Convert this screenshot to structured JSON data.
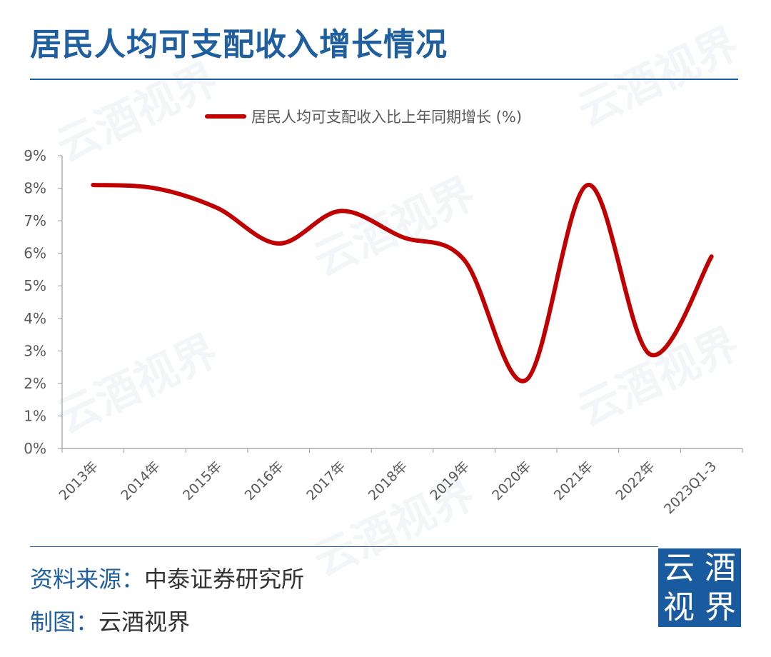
{
  "title": "居民人均可支配收入增长情况",
  "footer": {
    "source_label": "资料来源：",
    "source_value": "中泰证券研究所",
    "credit_label": "制图：",
    "credit_value": "云酒视界"
  },
  "logo": {
    "chars": [
      "云",
      "酒",
      "视",
      "界"
    ]
  },
  "watermark_text": "云酒视界",
  "colors": {
    "accent": "#1f5f9f",
    "line": "#c00000",
    "axis": "#999999",
    "text": "#595959"
  },
  "chart_data": {
    "type": "line",
    "legend": {
      "label": "居民人均可支配收入比上年同期增长 (%)",
      "position": "top"
    },
    "categories": [
      "2013年",
      "2014年",
      "2015年",
      "2016年",
      "2017年",
      "2018年",
      "2019年",
      "2020年",
      "2021年",
      "2022年",
      "2023Q1-3"
    ],
    "series": [
      {
        "name": "居民人均可支配收入比上年同期增长 (%)",
        "values": [
          8.1,
          8.0,
          7.4,
          6.3,
          7.3,
          6.5,
          5.8,
          2.1,
          8.1,
          2.9,
          5.9
        ]
      }
    ],
    "ylim": [
      0,
      9
    ],
    "yticks": [
      "0%",
      "1%",
      "2%",
      "3%",
      "4%",
      "5%",
      "6%",
      "7%",
      "8%",
      "9%"
    ],
    "grid": false
  }
}
